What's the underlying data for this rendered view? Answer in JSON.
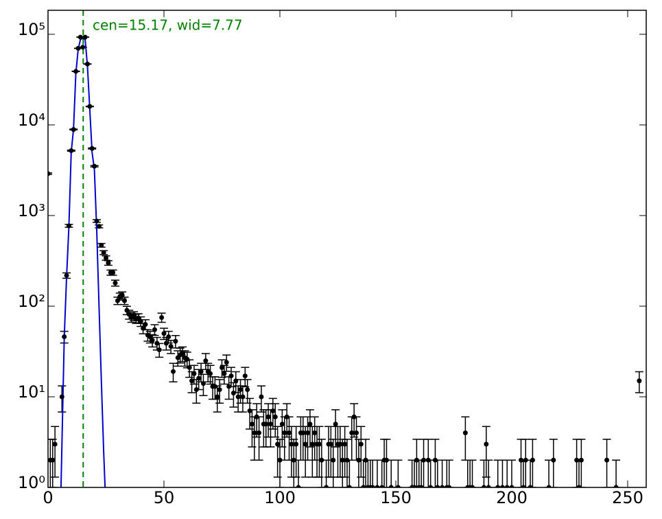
{
  "chart_data": {
    "type": "errorbar",
    "ylog": true,
    "xlim": [
      0,
      258
    ],
    "ylim": [
      1,
      184000
    ],
    "xticks": [
      0,
      50,
      100,
      150,
      200,
      250
    ],
    "yticks": [
      {
        "value": 1,
        "label": "10⁰"
      },
      {
        "value": 10,
        "label": "10¹"
      },
      {
        "value": 100,
        "label": "10²"
      },
      {
        "value": 1000,
        "label": "10³"
      },
      {
        "value": 10000,
        "label": "10⁴"
      },
      {
        "value": 100000,
        "label": "10⁵"
      }
    ],
    "color": "#000000",
    "x": [
      0,
      1,
      2,
      3,
      6,
      7,
      8,
      9,
      10,
      11,
      12,
      13,
      14,
      15,
      16,
      17,
      18,
      19,
      20,
      21,
      22,
      23,
      24,
      25,
      26,
      27,
      28,
      29,
      30,
      31,
      32,
      33,
      34,
      35,
      36,
      37,
      38,
      39,
      40,
      41,
      42,
      43,
      44,
      45,
      46,
      47,
      48,
      49,
      50,
      51,
      52,
      53,
      54,
      55,
      56,
      57,
      58,
      59,
      60,
      61,
      62,
      63,
      64,
      65,
      66,
      67,
      68,
      69,
      70,
      71,
      72,
      73,
      74,
      75,
      76,
      77,
      78,
      79,
      80,
      81,
      82,
      83,
      84,
      85,
      86,
      87,
      88,
      89,
      90,
      91,
      92,
      93,
      94,
      95,
      96,
      97,
      98,
      99,
      100,
      101,
      102,
      103,
      104,
      105,
      106,
      107,
      108,
      109,
      110,
      111,
      112,
      113,
      114,
      115,
      116,
      117,
      118,
      120,
      121,
      122,
      123,
      124,
      125,
      126,
      127,
      128,
      129,
      130,
      131,
      132,
      133,
      134,
      135,
      136,
      137,
      138,
      139,
      140,
      142,
      144,
      145,
      146,
      148,
      151,
      157,
      158,
      159,
      160,
      161,
      162,
      164,
      165,
      167,
      168,
      170,
      172,
      173,
      180,
      181,
      182,
      183,
      188,
      189,
      190,
      194,
      196,
      198,
      200,
      204,
      205,
      206,
      208,
      209,
      216,
      218,
      228,
      229,
      230,
      241,
      245,
      255
    ],
    "values": [
      2900,
      2,
      2,
      3,
      10,
      46,
      218,
      770,
      5200,
      8900,
      39000,
      70000,
      93000,
      72000,
      93000,
      47000,
      16000,
      5500,
      3500,
      870,
      760,
      470,
      390,
      340,
      300,
      235,
      235,
      180,
      115,
      128,
      132,
      115,
      90,
      81,
      75,
      78,
      73,
      74,
      68,
      57,
      63,
      48,
      46,
      42,
      55,
      39,
      33,
      75,
      50,
      39,
      46,
      36,
      19,
      41,
      27,
      29,
      30,
      27,
      26,
      21,
      15,
      18,
      12,
      16,
      19,
      14,
      25,
      19,
      18,
      13,
      13,
      10,
      12,
      21,
      18,
      24,
      13,
      17,
      11,
      15,
      10,
      12,
      10,
      17,
      12,
      7,
      5,
      4,
      6,
      4,
      10,
      5,
      5,
      6,
      5,
      7,
      6,
      3,
      2,
      5,
      4,
      6,
      4,
      3,
      2,
      3,
      1,
      4,
      4,
      3,
      4,
      5,
      3,
      4,
      3,
      3,
      2,
      1,
      3,
      3,
      2,
      5,
      3,
      3,
      2,
      3,
      2,
      1,
      4,
      6,
      4,
      2,
      3,
      1,
      2,
      1,
      1,
      1,
      1,
      1,
      2,
      2,
      1,
      1,
      1,
      1,
      2,
      1,
      1,
      2,
      2,
      1,
      2,
      1,
      1,
      1,
      1,
      4,
      1,
      1,
      1,
      1,
      3,
      1,
      1,
      1,
      1,
      1,
      2,
      1,
      2,
      1,
      2,
      1,
      2,
      2,
      1,
      2,
      2,
      1,
      15
    ],
    "errors": [
      54,
      1.4,
      1.4,
      1.7,
      3.2,
      6.8,
      14.8,
      27.7,
      72,
      94,
      197,
      265,
      305,
      268,
      305,
      217,
      126,
      74,
      59,
      29.5,
      27.6,
      21.7,
      19.7,
      18.4,
      17.3,
      15.3,
      15.3,
      13.4,
      10.7,
      11.3,
      11.5,
      10.7,
      9.5,
      9,
      8.7,
      8.8,
      8.5,
      8.6,
      8.2,
      7.5,
      7.9,
      6.9,
      6.8,
      6.5,
      7.4,
      6.2,
      5.7,
      8.7,
      7.1,
      6.2,
      6.8,
      6,
      4.4,
      6.4,
      5.2,
      5.4,
      5.5,
      5.2,
      5.1,
      4.6,
      3.9,
      4.2,
      3.5,
      4,
      4.4,
      3.7,
      5,
      4.4,
      4.2,
      3.6,
      3.6,
      3.2,
      3.5,
      4.6,
      4.2,
      4.9,
      3.6,
      4.1,
      3.3,
      3.9,
      3.2,
      3.5,
      3.2,
      4.1,
      3.5,
      2.6,
      2.2,
      2,
      2.4,
      2,
      3.2,
      2.2,
      2.2,
      2.4,
      2.2,
      2.6,
      2.4,
      1.7,
      1.4,
      2.2,
      2,
      2.4,
      2,
      1.7,
      1.4,
      1.7,
      1,
      2,
      2,
      1.7,
      2,
      2.2,
      1.7,
      2,
      1.7,
      1.7,
      1.4,
      1,
      1.7,
      1.7,
      1.4,
      2.2,
      1.7,
      1.7,
      1.4,
      1.7,
      1.4,
      1,
      2,
      2.4,
      2,
      1.4,
      1.7,
      1,
      1.4,
      1,
      1,
      1,
      1,
      1,
      1.4,
      1.4,
      1,
      1,
      1,
      1,
      1.4,
      1,
      1,
      1.4,
      1.4,
      1,
      1.4,
      1,
      1,
      1,
      1,
      2,
      1,
      1,
      1,
      1,
      1.7,
      1,
      1,
      1,
      1,
      1,
      1.4,
      1,
      1.4,
      1,
      1.4,
      1,
      1.4,
      1.4,
      1,
      1.4,
      1.4,
      1,
      3.9
    ],
    "fit": {
      "color": "#0000cc",
      "x": [
        5.6,
        7,
        8,
        9,
        10,
        11,
        12,
        13,
        14,
        15,
        16,
        17,
        18,
        19,
        20,
        21,
        22,
        23,
        24,
        24.6
      ],
      "values": [
        1,
        45,
        210,
        750,
        5000,
        9000,
        37000,
        68000,
        88000,
        90000,
        88000,
        45000,
        15000,
        5000,
        3200,
        700,
        100,
        15,
        2.5,
        1
      ]
    },
    "vline": {
      "x": 15.17,
      "color": "#008000"
    },
    "annotation": "cen=15.17, wid=7.77"
  }
}
